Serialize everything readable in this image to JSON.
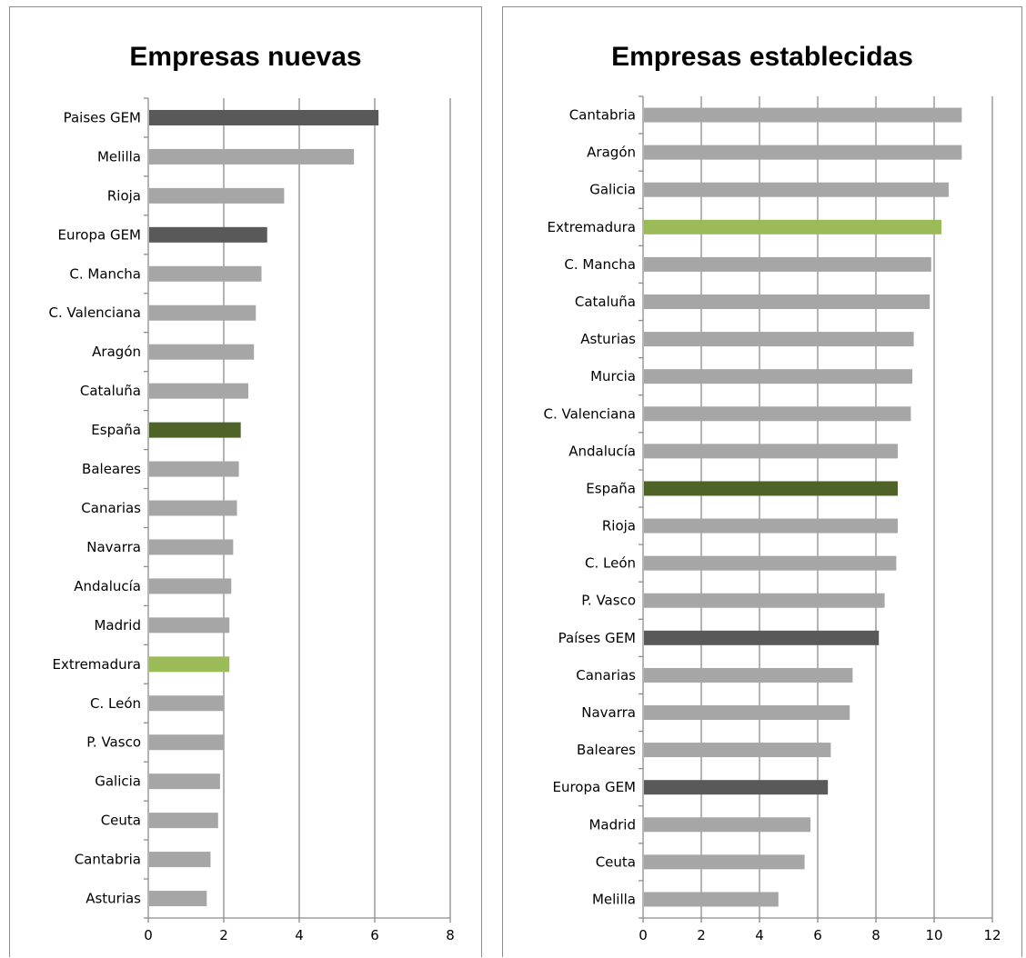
{
  "colors": {
    "default": "#a6a6a6",
    "gem": "#595959",
    "espana": "#4f6228",
    "extremadura": "#9bbb59",
    "gridline": "#8c8c8c",
    "axis": "#8c8c8c"
  },
  "chart_data": [
    {
      "type": "bar",
      "orientation": "horizontal",
      "title": "Empresas nuevas",
      "xlabel": "",
      "ylabel": "",
      "xlim": [
        0,
        8
      ],
      "xticks": [
        0,
        2,
        4,
        6,
        8
      ],
      "grid": true,
      "categories": [
        "Paises GEM",
        "Melilla",
        "Rioja",
        "Europa GEM",
        "C. Mancha",
        "C. Valenciana",
        "Aragón",
        "Cataluña",
        "España",
        "Baleares",
        "Canarias",
        "Navarra",
        "Andalucía",
        "Madrid",
        "Extremadura",
        "C. León",
        "P. Vasco",
        "Galicia",
        "Ceuta",
        "Cantabria",
        "Asturias"
      ],
      "values": [
        6.1,
        5.45,
        3.6,
        3.15,
        3.0,
        2.85,
        2.8,
        2.65,
        2.45,
        2.4,
        2.35,
        2.25,
        2.2,
        2.15,
        2.15,
        2.0,
        2.0,
        1.9,
        1.85,
        1.65,
        1.55
      ],
      "bar_colors": [
        "gem",
        "default",
        "default",
        "gem",
        "default",
        "default",
        "default",
        "default",
        "espana",
        "default",
        "default",
        "default",
        "default",
        "default",
        "extremadura",
        "default",
        "default",
        "default",
        "default",
        "default",
        "default"
      ]
    },
    {
      "type": "bar",
      "orientation": "horizontal",
      "title": "Empresas establecidas",
      "xlabel": "",
      "ylabel": "",
      "xlim": [
        0,
        12
      ],
      "xticks": [
        0,
        2,
        4,
        6,
        8,
        10,
        12
      ],
      "grid": true,
      "categories": [
        "Cantabria",
        "Aragón",
        "Galicia",
        "Extremadura",
        "C. Mancha",
        "Cataluña",
        "Asturias",
        "Murcia",
        "C. Valenciana",
        "Andalucía",
        "España",
        "Rioja",
        "C. León",
        "P. Vasco",
        "Países GEM",
        "Canarias",
        "Navarra",
        "Baleares",
        "Europa GEM",
        "Madrid",
        "Ceuta",
        "Melilla"
      ],
      "values": [
        10.95,
        10.95,
        10.5,
        10.25,
        9.9,
        9.85,
        9.3,
        9.25,
        9.2,
        8.75,
        8.75,
        8.75,
        8.7,
        8.3,
        8.1,
        7.2,
        7.1,
        6.45,
        6.35,
        5.75,
        5.55,
        4.65
      ],
      "bar_colors": [
        "default",
        "default",
        "default",
        "extremadura",
        "default",
        "default",
        "default",
        "default",
        "default",
        "default",
        "espana",
        "default",
        "default",
        "default",
        "gem",
        "default",
        "default",
        "default",
        "gem",
        "default",
        "default",
        "default"
      ]
    }
  ]
}
